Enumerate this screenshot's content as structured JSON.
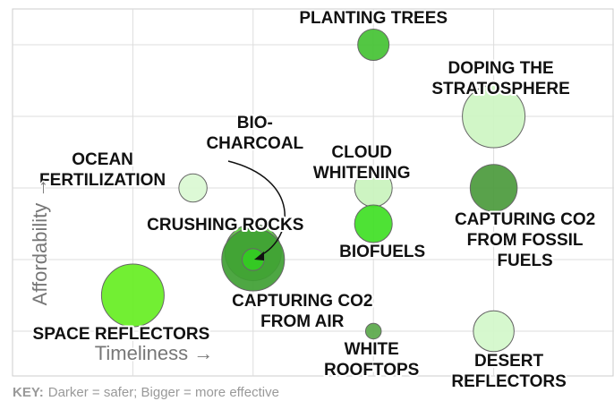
{
  "chart_data": {
    "type": "bubble",
    "x_label": "Timeliness →",
    "y_label": "Affordability →",
    "key_label": "KEY:",
    "key_text": "Darker = safer; Bigger = more effective",
    "xlim": [
      0,
      5
    ],
    "ylim": [
      0.375,
      5.5
    ],
    "xticks": [
      1,
      2,
      3,
      4
    ],
    "yticks": [
      1,
      2,
      3,
      4,
      5
    ],
    "grid": true,
    "points": [
      {
        "label": [
          "PLANTING TREES"
        ],
        "x": 3,
        "y": 5,
        "size": 5,
        "color": "#44c233"
      },
      {
        "label": [
          "DOPING THE",
          "STRATOSPHERE"
        ],
        "x": 4,
        "y": 4,
        "size": 10,
        "color": "#cdf5c2"
      },
      {
        "label": [
          "OCEAN",
          "FERTILIZATION"
        ],
        "x": 1.5,
        "y": 3,
        "size": 4.5,
        "color": "#daf8d2"
      },
      {
        "label": [
          "CLOUD",
          "WHITENING"
        ],
        "x": 3,
        "y": 3,
        "size": 6,
        "color": "#c9f3bd"
      },
      {
        "label": [
          "CAPTURING CO2",
          "FROM FOSSIL",
          "FUELS"
        ],
        "x": 4,
        "y": 3,
        "size": 7.5,
        "color": "#4b9a3c"
      },
      {
        "label": [
          "BIOFUELS"
        ],
        "x": 3,
        "y": 2.5,
        "size": 6,
        "color": "#3fe024"
      },
      {
        "label": [
          "CRUSHING ROCKS"
        ],
        "x": 2,
        "y": 2.1,
        "size": 9,
        "color": "#5ccd3e"
      },
      {
        "label": [
          "CAPTURING CO2",
          "FROM AIR"
        ],
        "x": 2,
        "y": 2,
        "size": 10,
        "color": "#3f9f33"
      },
      {
        "label": [
          "BIO-",
          "CHARCOAL"
        ],
        "x": 2,
        "y": 2,
        "size": 3.5,
        "color": "#33cc22"
      },
      {
        "label": [
          "SPACE REFLECTORS"
        ],
        "x": 1,
        "y": 1.5,
        "size": 10,
        "color": "#66ee22"
      },
      {
        "label": [
          "WHITE",
          "ROOFTOPS"
        ],
        "x": 3,
        "y": 1,
        "size": 2.5,
        "color": "#5aa84a"
      },
      {
        "label": [
          "DESERT",
          "REFLECTORS"
        ],
        "x": 4,
        "y": 1,
        "size": 6.5,
        "color": "#d2f7ca"
      }
    ]
  }
}
